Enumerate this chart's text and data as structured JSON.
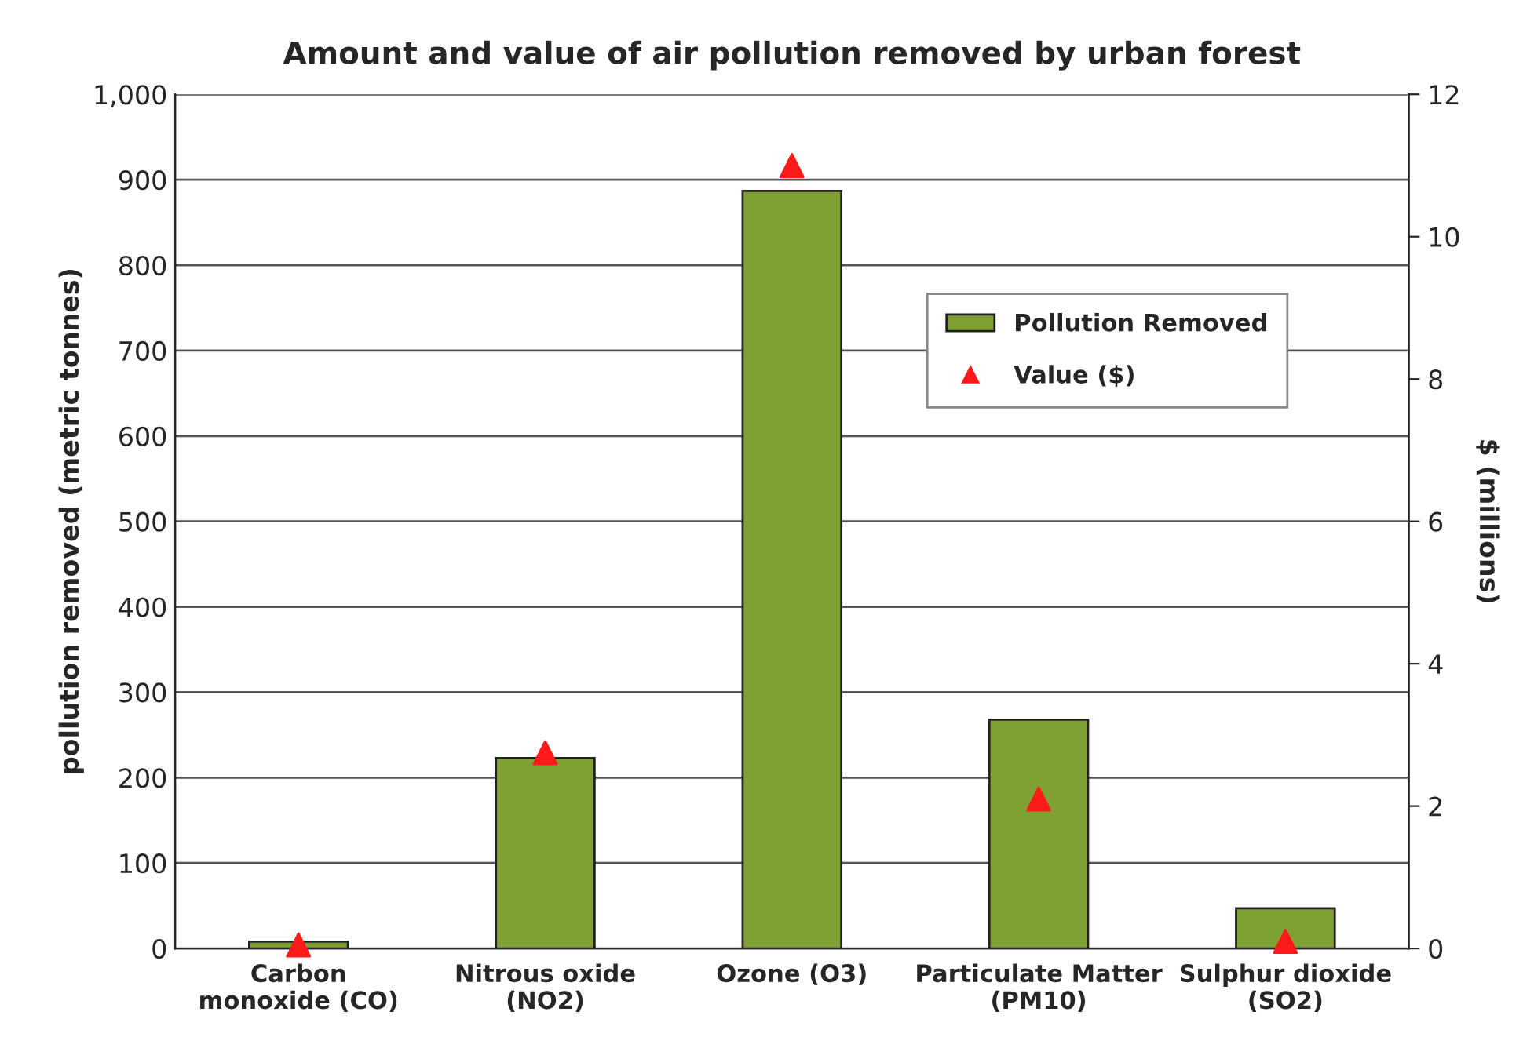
{
  "chart_data": {
    "type": "bar",
    "title": "Amount and value of air pollution removed by urban forest",
    "categories": [
      "Carbon\nmonoxide (CO)",
      "Nitrous oxide\n(NO2)",
      "Ozone (O3)",
      "Particulate Matter\n(PM10)",
      "Sulphur dioxide\n(SO2)"
    ],
    "series": [
      {
        "name": "Pollution Removed",
        "color": "#7fa033",
        "values": [
          8,
          223,
          887,
          268,
          47
        ]
      },
      {
        "name": "Value ($)",
        "type": "scatter",
        "axis": "y2",
        "color": "#ff1a1a",
        "marker": "triangle",
        "values": [
          0.05,
          2.75,
          11.0,
          2.1,
          0.1
        ]
      }
    ],
    "ylabel": "pollution removed (metric tonnes)",
    "y2label": "$ (millions)",
    "ylim": [
      0,
      1000
    ],
    "yticks": [
      0,
      {
        "value": 100,
        "label": "100"
      },
      200,
      300,
      400,
      500,
      600,
      700,
      800,
      900,
      {
        "value": 1000,
        "label": "1,000"
      }
    ],
    "y2lim": [
      0,
      12
    ],
    "y2ticks": [
      0,
      2,
      4,
      6,
      8,
      10,
      12
    ],
    "grid": "y",
    "legend": "right"
  }
}
